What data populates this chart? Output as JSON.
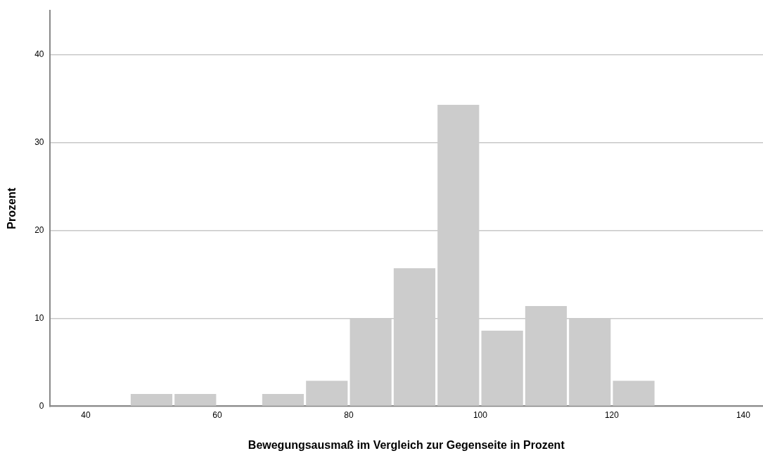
{
  "chart_data": {
    "type": "histogram",
    "xlabel": "Bewegungsausmaß im Vergleich zur Gegenseite in Prozent",
    "ylabel": "Prozent",
    "bins": [
      46.67,
      53.33,
      60,
      66.67,
      73.33,
      80,
      86.67,
      93.33,
      100,
      106.67,
      113.33,
      120,
      126.67
    ],
    "values": [
      1.4,
      1.4,
      0,
      1.4,
      2.9,
      10,
      15.7,
      34.3,
      8.6,
      11.4,
      10,
      2.9
    ],
    "color": "#cccccc",
    "xlim": [
      34.5,
      143
    ],
    "xticks": [
      40,
      60,
      80,
      100,
      120,
      140
    ],
    "ylim": [
      0,
      45
    ],
    "yticks": [
      0,
      10,
      20,
      30,
      40
    ],
    "grid": "y",
    "legend": false
  }
}
